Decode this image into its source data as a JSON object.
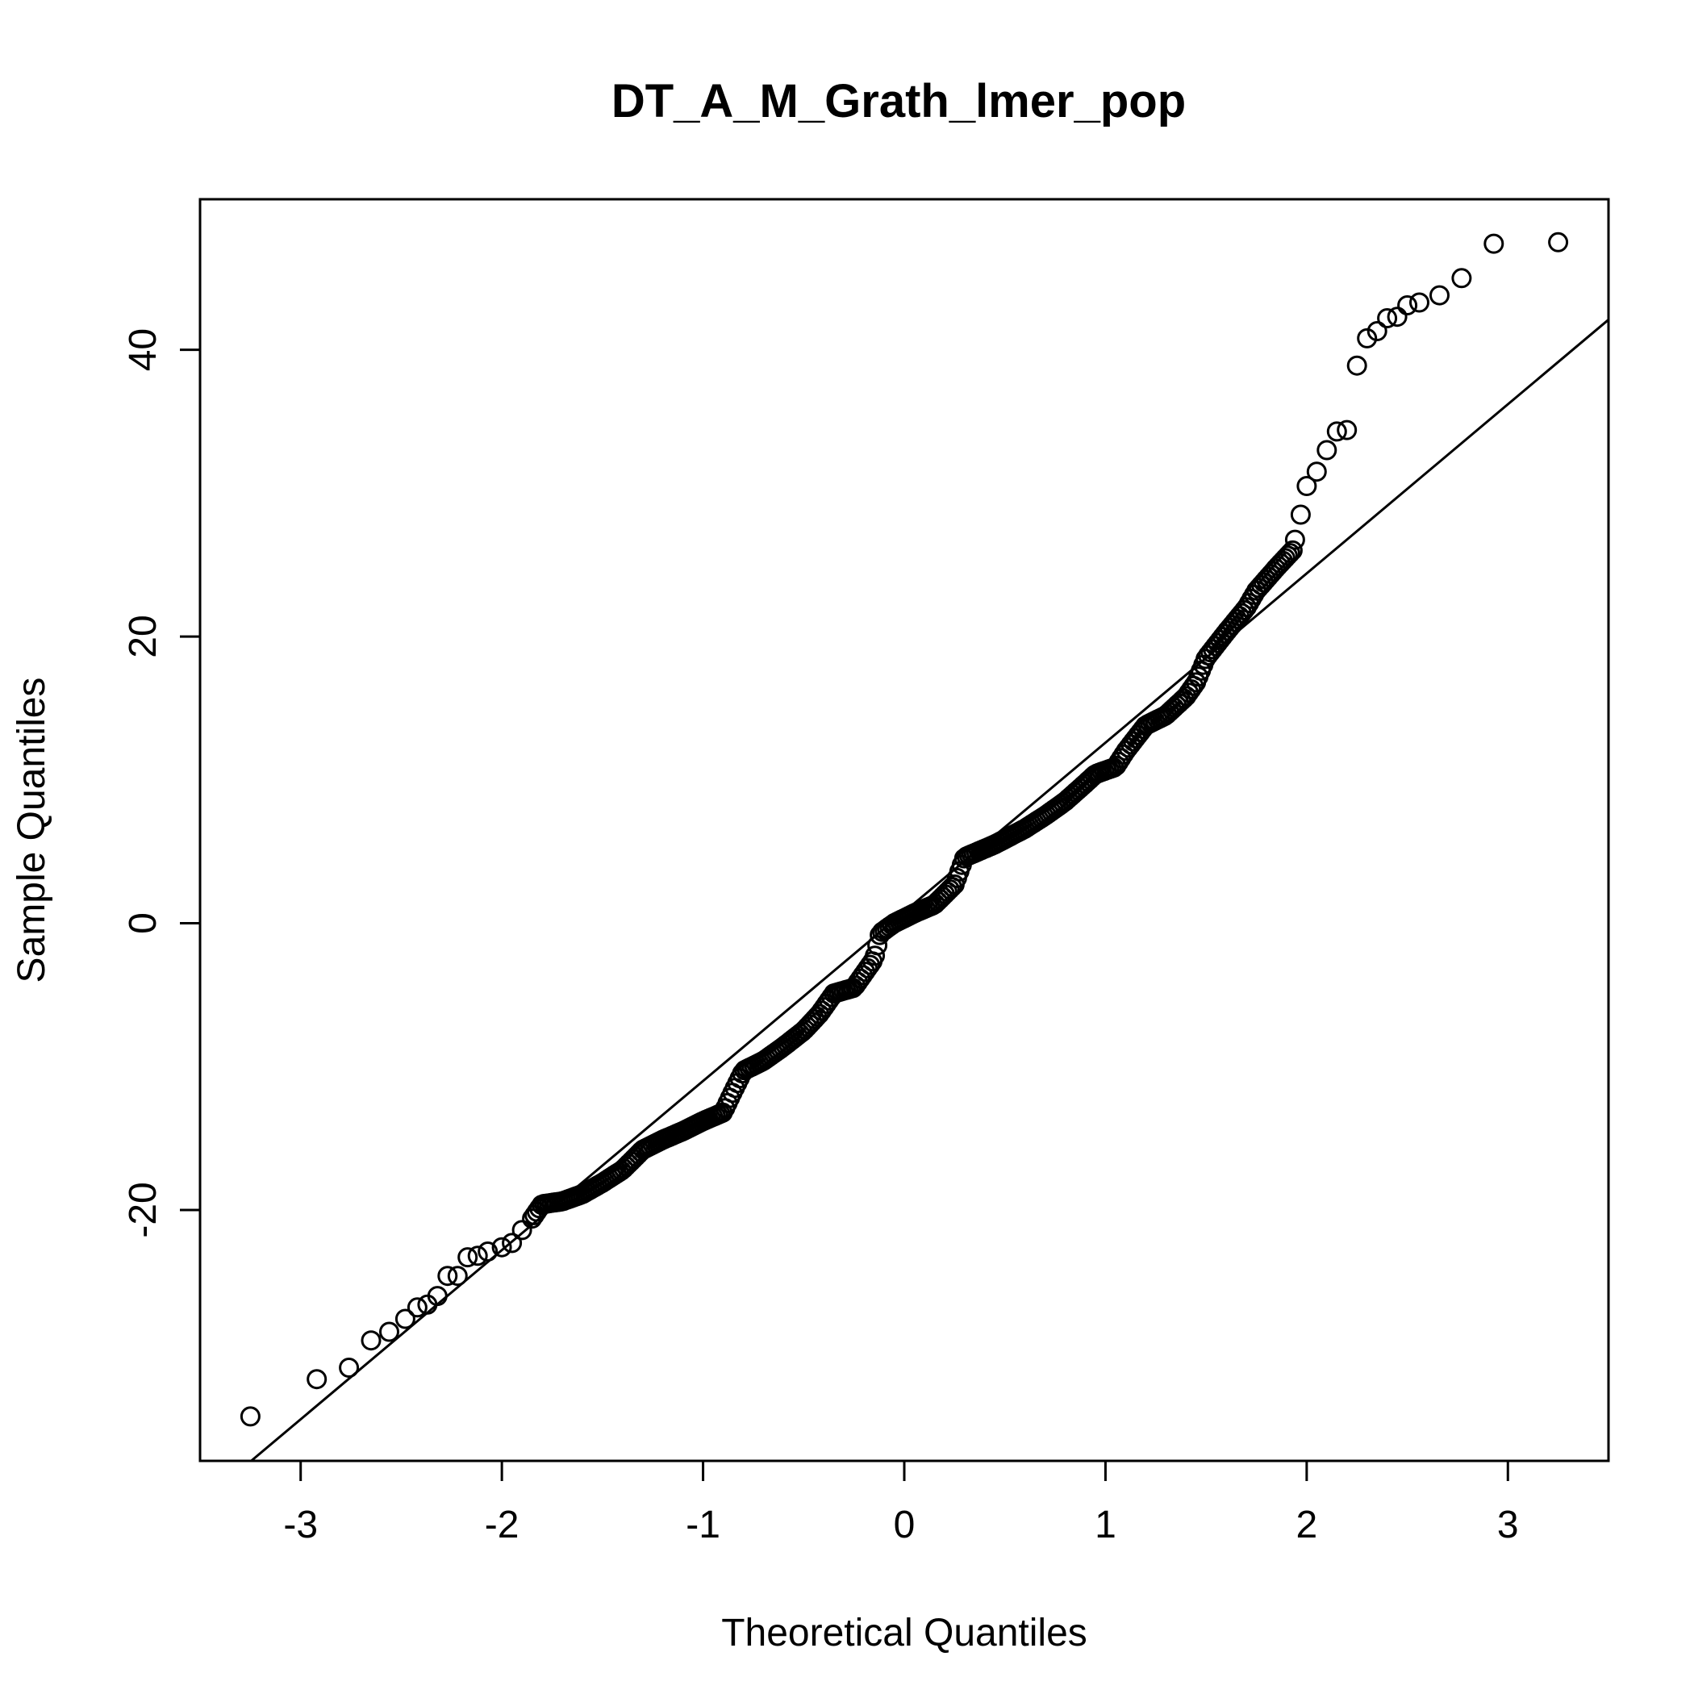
{
  "chart_data": {
    "type": "scatter",
    "title": "DT_A_M_Grath_lmer_pop",
    "xlabel": "Theoretical Quantiles",
    "ylabel": "Sample Quantiles",
    "xlim": [
      -3.5,
      3.5
    ],
    "ylim": [
      -37.5,
      50.5
    ],
    "xticks": [
      -3,
      -2,
      -1,
      0,
      1,
      2,
      3
    ],
    "yticks": [
      -20,
      0,
      20,
      40
    ],
    "grid": false,
    "reference_line": {
      "intercept": 0.8,
      "slope": 11.8
    },
    "anchors": [
      [
        -3.25,
        -34.4
      ],
      [
        -2.92,
        -31.8
      ],
      [
        -2.76,
        -31.0
      ],
      [
        -2.65,
        -29.1
      ],
      [
        -2.56,
        -28.5
      ],
      [
        -2.48,
        -27.6
      ],
      [
        -2.42,
        -26.8
      ],
      [
        -2.37,
        -26.6
      ],
      [
        -2.32,
        -26.0
      ],
      [
        -2.27,
        -24.6
      ],
      [
        -2.22,
        -24.6
      ],
      [
        -2.17,
        -23.3
      ],
      [
        -2.12,
        -23.2
      ],
      [
        -2.07,
        -22.9
      ],
      [
        -2.0,
        -22.6
      ],
      [
        -1.95,
        -22.3
      ],
      [
        -1.9,
        -21.4
      ],
      [
        -1.85,
        -20.6
      ],
      [
        -1.8,
        -19.6
      ],
      [
        -1.7,
        -19.4
      ],
      [
        -1.6,
        -18.9
      ],
      [
        -1.5,
        -18.1
      ],
      [
        -1.4,
        -17.2
      ],
      [
        -1.3,
        -15.8
      ],
      [
        -1.2,
        -15.1
      ],
      [
        -1.1,
        -14.5
      ],
      [
        -1.0,
        -13.8
      ],
      [
        -0.9,
        -13.2
      ],
      [
        -0.86,
        -12.0
      ],
      [
        -0.8,
        -10.3
      ],
      [
        -0.7,
        -9.6
      ],
      [
        -0.6,
        -8.6
      ],
      [
        -0.5,
        -7.5
      ],
      [
        -0.42,
        -6.3
      ],
      [
        -0.35,
        -4.9
      ],
      [
        -0.25,
        -4.5
      ],
      [
        -0.2,
        -3.5
      ],
      [
        -0.15,
        -2.5
      ],
      [
        -0.12,
        -0.7
      ],
      [
        -0.05,
        0.0
      ],
      [
        0.05,
        0.7
      ],
      [
        0.15,
        1.3
      ],
      [
        0.25,
        2.7
      ],
      [
        0.3,
        4.6
      ],
      [
        0.45,
        5.5
      ],
      [
        0.6,
        6.6
      ],
      [
        0.7,
        7.5
      ],
      [
        0.8,
        8.5
      ],
      [
        0.88,
        9.5
      ],
      [
        0.95,
        10.4
      ],
      [
        1.05,
        10.9
      ],
      [
        1.1,
        12.0
      ],
      [
        1.2,
        13.8
      ],
      [
        1.3,
        14.5
      ],
      [
        1.4,
        15.8
      ],
      [
        1.45,
        16.8
      ],
      [
        1.5,
        18.5
      ],
      [
        1.6,
        20.3
      ],
      [
        1.7,
        22.0
      ],
      [
        1.75,
        23.2
      ],
      [
        1.85,
        24.8
      ],
      [
        1.93,
        26.0
      ],
      [
        1.97,
        28.5
      ],
      [
        2.0,
        30.5
      ],
      [
        2.05,
        31.5
      ],
      [
        2.1,
        33.0
      ],
      [
        2.15,
        34.3
      ],
      [
        2.2,
        34.4
      ],
      [
        2.25,
        38.9
      ],
      [
        2.3,
        40.8
      ],
      [
        2.35,
        41.3
      ],
      [
        2.4,
        42.2
      ],
      [
        2.45,
        42.3
      ],
      [
        2.5,
        43.1
      ],
      [
        2.56,
        43.3
      ],
      [
        2.66,
        43.8
      ],
      [
        2.77,
        45.0
      ],
      [
        2.93,
        47.4
      ],
      [
        3.25,
        47.5
      ]
    ]
  }
}
